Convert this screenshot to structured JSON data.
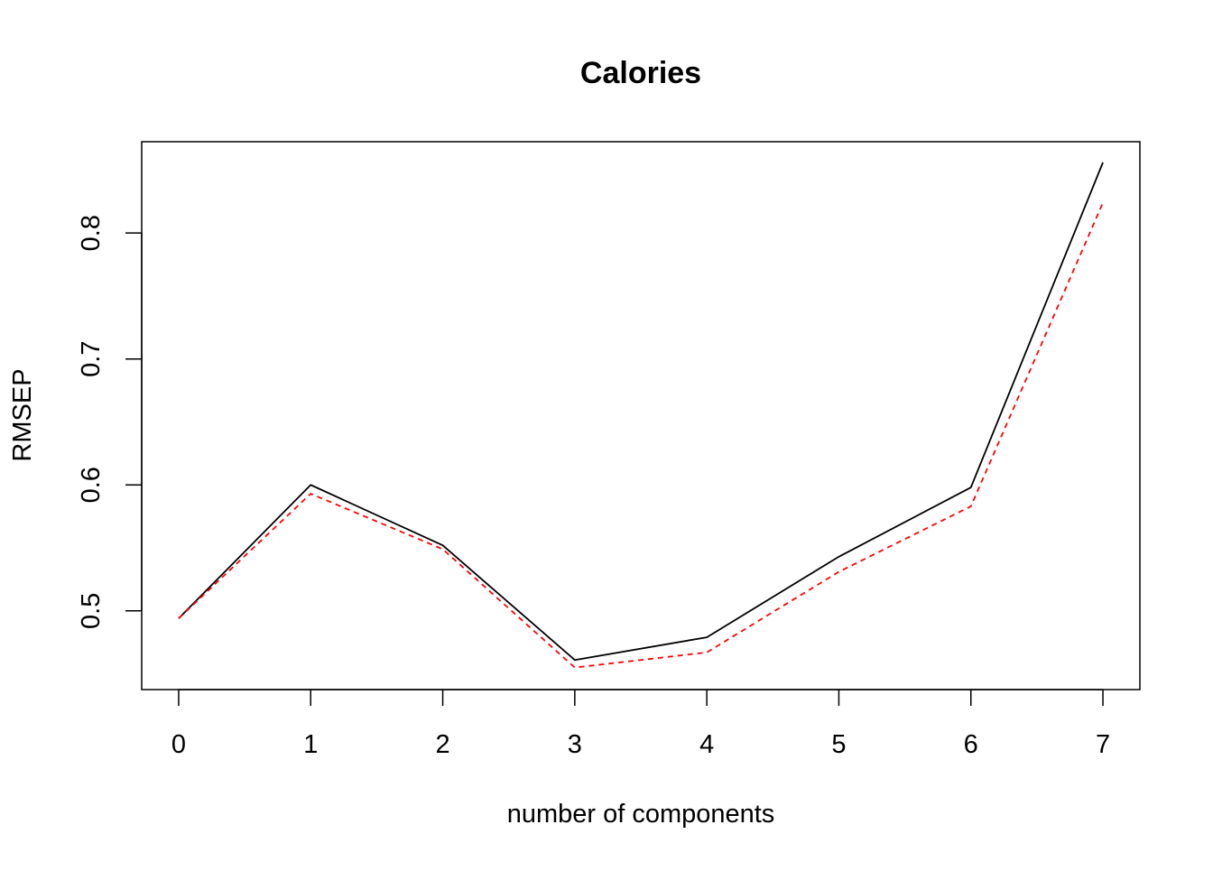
{
  "chart_data": {
    "type": "line",
    "title": "Calories",
    "xlabel": "number of components",
    "ylabel": "RMSEP",
    "x": [
      0,
      1,
      2,
      3,
      4,
      5,
      6,
      7
    ],
    "x_ticks": [
      "0",
      "1",
      "2",
      "3",
      "4",
      "5",
      "6",
      "7"
    ],
    "y_ticks": [
      "0.5",
      "0.6",
      "0.7",
      "0.8"
    ],
    "y_tick_values": [
      0.5,
      0.6,
      0.7,
      0.8
    ],
    "xlim": [
      -0.28,
      7.28
    ],
    "ylim": [
      0.4375,
      0.8725
    ],
    "grid": false,
    "series": [
      {
        "values": [
          0.494,
          0.6,
          0.552,
          0.461,
          0.479,
          0.543,
          0.598,
          0.856
        ],
        "color": "#000000",
        "style": "solid"
      },
      {
        "values": [
          0.494,
          0.593,
          0.549,
          0.455,
          0.467,
          0.531,
          0.583,
          0.824
        ],
        "color": "#ff0000",
        "style": "dashed"
      }
    ]
  }
}
